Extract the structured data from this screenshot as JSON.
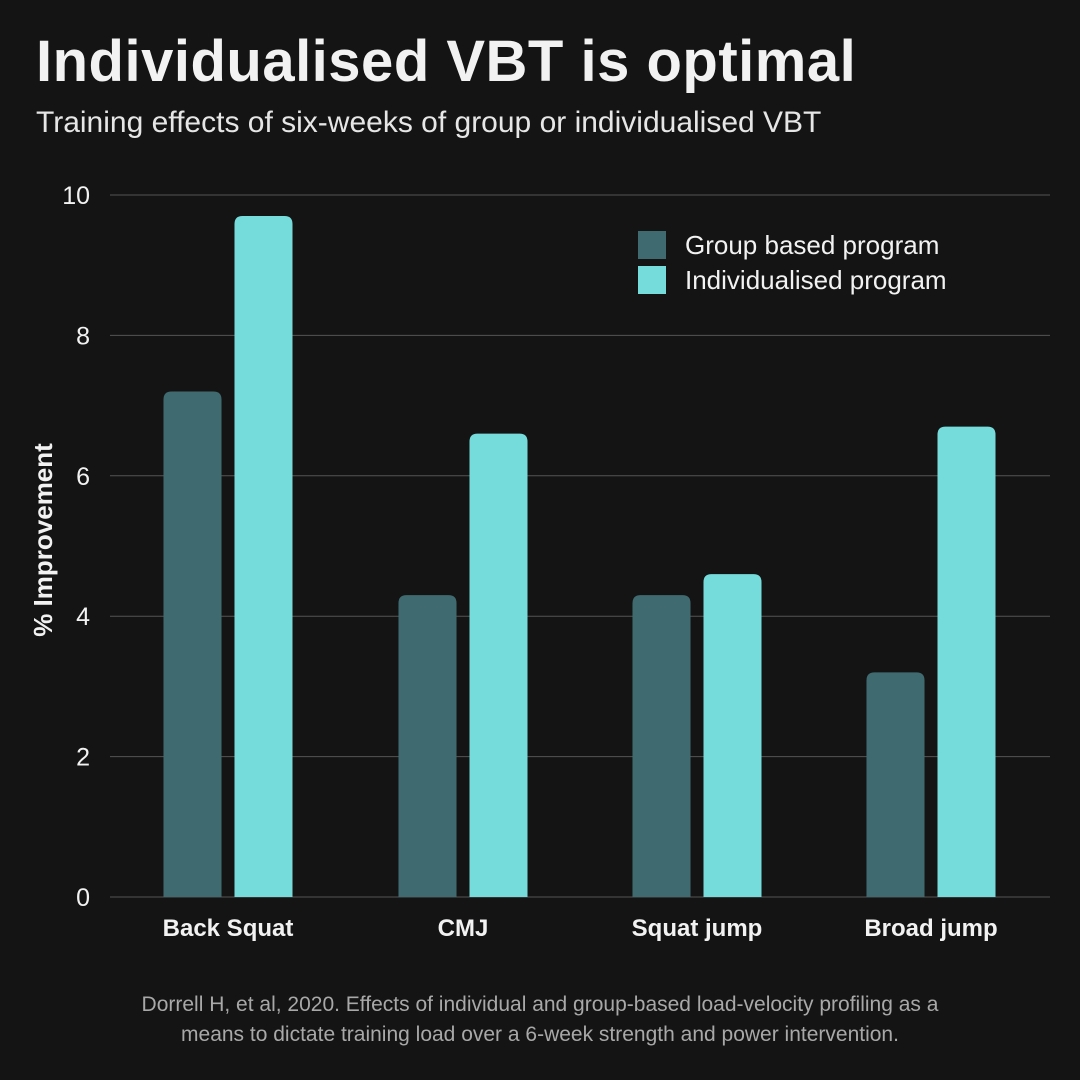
{
  "header": {
    "title": "Individualised VBT is optimal",
    "subtitle": "Training effects of six-weeks of group or individualised VBT"
  },
  "source": {
    "line1": "Dorrell H, et al, 2020. Effects of individual and group-based load-velocity profiling as a",
    "line2": "means to dictate training load over a 6-week strength and power intervention."
  },
  "chart_data": {
    "type": "bar",
    "categories": [
      "Back Squat",
      "CMJ",
      "Squat jump",
      "Broad jump"
    ],
    "series": [
      {
        "name": "Group based program",
        "color": "#3f6b70",
        "values": [
          7.2,
          4.3,
          4.3,
          3.2
        ]
      },
      {
        "name": "Individualised program",
        "color": "#76dcdb",
        "values": [
          9.7,
          6.6,
          4.6,
          6.7
        ]
      }
    ],
    "xlabel": "",
    "ylabel": "% Improvement",
    "ylim": [
      0,
      10
    ],
    "yticks": [
      0,
      2,
      4,
      6,
      8,
      10
    ],
    "grid": true,
    "legend_position": "top-right",
    "colors": {
      "background": "#141414",
      "grid": "#555555",
      "text": "#f2f2f2"
    }
  }
}
